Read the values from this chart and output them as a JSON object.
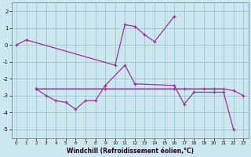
{
  "xlabel": "Windchill (Refroidissement éolien,°C)",
  "bg_color": "#cce8ee",
  "line_color": "#993399",
  "grid_color": "#99bbcc",
  "ylim": [
    -5.5,
    2.5
  ],
  "yticks": [
    -5,
    -4,
    -3,
    -2,
    -1,
    0,
    1,
    2
  ],
  "xticks": [
    0,
    1,
    2,
    3,
    4,
    5,
    6,
    7,
    8,
    9,
    10,
    11,
    12,
    13,
    14,
    15,
    16,
    17,
    18,
    19,
    20,
    21,
    22,
    23
  ],
  "series1_x": [
    0,
    1,
    10,
    11,
    12,
    13,
    14,
    16
  ],
  "series1_y": [
    0.0,
    0.3,
    -1.2,
    1.2,
    1.1,
    0.6,
    0.2,
    1.7
  ],
  "series2_x": [
    2,
    3,
    4,
    5,
    6,
    7,
    8,
    9,
    11,
    12,
    16,
    17,
    18,
    20,
    21,
    22
  ],
  "series2_y": [
    -2.6,
    -3.0,
    -3.3,
    -3.4,
    -3.8,
    -3.3,
    -3.3,
    -2.4,
    -1.2,
    -2.3,
    -2.4,
    -3.5,
    -2.8,
    -2.8,
    -2.8,
    -5.0
  ],
  "series3_x": [
    2,
    9,
    16,
    17,
    19,
    20,
    21,
    22,
    23
  ],
  "series3_y": [
    -2.6,
    -2.6,
    -2.6,
    -2.6,
    -2.6,
    -2.6,
    -2.6,
    -2.7,
    -3.0
  ],
  "flat_x": [
    2,
    3,
    4,
    5,
    6,
    7,
    8,
    9,
    10,
    11,
    12,
    13,
    14,
    15,
    16,
    17,
    18,
    19,
    20,
    21
  ],
  "flat_y": [
    -2.6,
    -2.6,
    -2.6,
    -2.6,
    -2.6,
    -2.6,
    -2.6,
    -2.6,
    -2.6,
    -2.6,
    -2.6,
    -2.6,
    -2.6,
    -2.6,
    -2.6,
    -2.6,
    -2.6,
    -2.6,
    -2.6,
    -2.6
  ]
}
